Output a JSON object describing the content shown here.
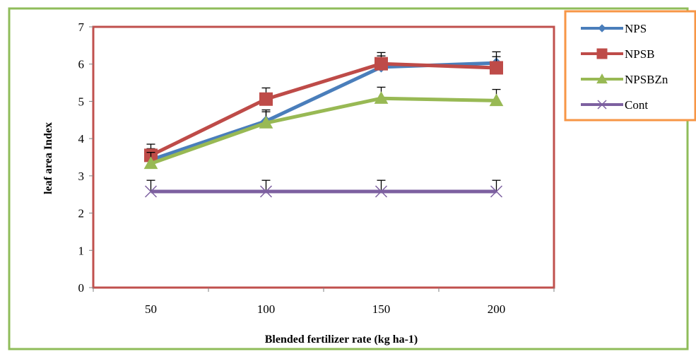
{
  "chart_data": {
    "type": "line",
    "xlabel": "Blended fertilizer rate (kg ha-1)",
    "ylabel": "leaf area Index",
    "categories": [
      "50",
      "100",
      "150",
      "200"
    ],
    "ylim": [
      0,
      7
    ],
    "yticks": [
      "0",
      "1",
      "2",
      "3",
      "4",
      "5",
      "6",
      "7"
    ],
    "grid": false,
    "legend_position": "top-right",
    "series": [
      {
        "name": "NPS",
        "values": [
          3.43,
          4.47,
          5.92,
          6.03
        ],
        "error": [
          0.3,
          0.3,
          0.3,
          0.3
        ],
        "color": "#4a7ebb",
        "marker": "diamond"
      },
      {
        "name": "NPSB",
        "values": [
          3.55,
          5.06,
          6.01,
          5.9
        ],
        "error": [
          0.3,
          0.3,
          0.3,
          0.3
        ],
        "color": "#be4b48",
        "marker": "square"
      },
      {
        "name": "NPSBZn",
        "values": [
          3.33,
          4.42,
          5.08,
          5.02
        ],
        "error": [
          0.3,
          0.3,
          0.3,
          0.3
        ],
        "color": "#98b954",
        "marker": "triangle"
      },
      {
        "name": "Cont",
        "values": [
          2.58,
          2.58,
          2.58,
          2.58
        ],
        "error": [
          0.3,
          0.3,
          0.3,
          0.3
        ],
        "color": "#7d60a0",
        "marker": "x"
      }
    ],
    "colors": {
      "outer_border": "#8fbc5a",
      "plot_border": "#c0504d",
      "legend_border": "#f79646"
    }
  }
}
